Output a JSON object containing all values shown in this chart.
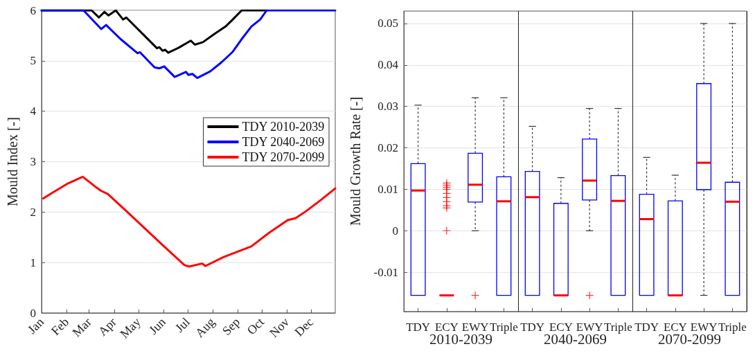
{
  "chart_data": [
    {
      "type": "line",
      "ylabel": "Mould Index [-]",
      "xlim": [
        "--01-01",
        "--12-31"
      ],
      "ylim": [
        0,
        6
      ],
      "yticks": [
        0,
        1,
        2,
        3,
        4,
        5,
        6
      ],
      "xticks": [
        {
          "value": "--01-01",
          "label": "Jan"
        },
        {
          "value": "--02-01",
          "label": "Feb"
        },
        {
          "value": "--03-01",
          "label": "Mar"
        },
        {
          "value": "--04-01",
          "label": "Apr"
        },
        {
          "value": "--05-01",
          "label": "May"
        },
        {
          "value": "--06-01",
          "label": "Jun"
        },
        {
          "value": "--07-01",
          "label": "Jul"
        },
        {
          "value": "--08-01",
          "label": "Aug"
        },
        {
          "value": "--09-01",
          "label": "Sep"
        },
        {
          "value": "--10-01",
          "label": "Oct"
        },
        {
          "value": "--11-01",
          "label": "Nov"
        },
        {
          "value": "--12-01",
          "label": "Dec"
        }
      ],
      "grid": "y",
      "legend": "right",
      "marker": "none",
      "line_style": "solid",
      "series": [
        {
          "name": "TDY 2010-2039",
          "color": "#000000",
          "x": [
            "--01-01",
            "--03-04",
            "--03-13",
            "--03-20",
            "--03-25",
            "--04-03",
            "--04-12",
            "--04-16",
            "--05-24",
            "--05-27",
            "--05-31",
            "--06-03",
            "--06-07",
            "--06-20",
            "--07-05",
            "--07-10",
            "--07-20",
            "--08-03",
            "--08-17",
            "--08-26",
            "--09-06",
            "--10-07"
          ],
          "values": [
            6,
            6,
            5.86,
            5.97,
            5.9,
            6,
            5.82,
            5.86,
            5.25,
            5.27,
            5.2,
            5.22,
            5.16,
            5.26,
            5.4,
            5.32,
            5.37,
            5.53,
            5.68,
            5.82,
            6,
            6
          ]
        },
        {
          "name": "TDY 2040-2069",
          "color": "#0000ff",
          "x": [
            "--01-01",
            "--02-22",
            "--03-16",
            "--03-22",
            "--04-09",
            "--04-30",
            "--05-03",
            "--05-21",
            "--05-27",
            "--06-02",
            "--06-15",
            "--06-29",
            "--07-02",
            "--07-07",
            "--07-13",
            "--07-29",
            "--08-12",
            "--08-26",
            "--09-06",
            "--09-18",
            "--09-29",
            "--10-07",
            "--12-31"
          ],
          "values": [
            6,
            6,
            5.63,
            5.71,
            5.43,
            5.15,
            5.17,
            4.87,
            4.85,
            4.89,
            4.68,
            4.78,
            4.72,
            4.74,
            4.66,
            4.79,
            4.97,
            5.18,
            5.43,
            5.68,
            5.82,
            6,
            6
          ]
        },
        {
          "name": "TDY 2070-2099",
          "color": "#ff0000",
          "x": [
            "--01-03",
            "--01-15",
            "--02-03",
            "--02-21",
            "--03-09",
            "--03-16",
            "--03-24",
            "--04-14",
            "--05-30",
            "--06-27",
            "--07-03",
            "--07-19",
            "--07-23",
            "--08-15",
            "--09-18",
            "--10-10",
            "--11-02",
            "--11-12",
            "--11-25",
            "--12-14",
            "--12-31"
          ],
          "values": [
            2.27,
            2.39,
            2.57,
            2.7,
            2.5,
            2.42,
            2.36,
            2.05,
            1.36,
            0.95,
            0.92,
            0.98,
            0.93,
            1.11,
            1.32,
            1.59,
            1.84,
            1.88,
            2.02,
            2.25,
            2.47
          ]
        }
      ]
    },
    {
      "type": "box",
      "ylabel": "Mould Growth Rate [-]",
      "ylim": [
        -0.0195,
        0.053
      ],
      "yticks": [
        -0.01,
        0,
        0.01,
        0.02,
        0.03,
        0.04,
        0.05
      ],
      "grid": "y",
      "categories": [
        "TDY",
        "ECY",
        "EWY",
        "Triple",
        "TDY",
        "ECY",
        "EWY",
        "Triple",
        "TDY",
        "ECY",
        "EWY",
        "Triple"
      ],
      "annotations": [
        "2010-2039",
        "2040-2069",
        "2070-2099"
      ],
      "series": [
        {
          "color": "#0000ff",
          "boxes": [
            {
              "low": -0.0156,
              "q1": -0.0156,
              "median": 0.0097,
              "q3": 0.0162,
              "high": 0.0303
            },
            {
              "low": -0.0156,
              "q1": -0.0156,
              "median": -0.0156,
              "q3": -0.0156,
              "high": -0.0156,
              "outliers": [
                0,
                0.0055,
                0.006,
                0.007,
                0.008,
                0.009,
                0.01,
                0.0105,
                0.011,
                0.0115
              ]
            },
            {
              "low": 0,
              "q1": 0.0069,
              "median": 0.0111,
              "q3": 0.0187,
              "high": 0.0321,
              "outliers": [
                -0.0156
              ]
            },
            {
              "low": -0.0156,
              "q1": -0.0156,
              "median": 0.0071,
              "q3": 0.013,
              "high": 0.0321
            },
            {
              "low": -0.0156,
              "q1": -0.0156,
              "median": 0.0081,
              "q3": 0.0143,
              "high": 0.0252
            },
            {
              "low": -0.0156,
              "q1": -0.0156,
              "median": -0.0156,
              "q3": 0.0066,
              "high": 0.0128
            },
            {
              "low": 0,
              "q1": 0.0074,
              "median": 0.0121,
              "q3": 0.0221,
              "high": 0.0295,
              "outliers": [
                -0.0156
              ]
            },
            {
              "low": -0.0156,
              "q1": -0.0156,
              "median": 0.0072,
              "q3": 0.0133,
              "high": 0.0295
            },
            {
              "low": -0.0156,
              "q1": -0.0156,
              "median": 0.0028,
              "q3": 0.0088,
              "high": 0.0177
            },
            {
              "low": -0.0156,
              "q1": -0.0156,
              "median": -0.0156,
              "q3": 0.0072,
              "high": 0.0134
            },
            {
              "low": -0.0156,
              "q1": 0.0099,
              "median": 0.0164,
              "q3": 0.0355,
              "high": 0.05
            },
            {
              "low": -0.0156,
              "q1": -0.0156,
              "median": 0.007,
              "q3": 0.0117,
              "high": 0.05
            }
          ]
        }
      ]
    }
  ]
}
